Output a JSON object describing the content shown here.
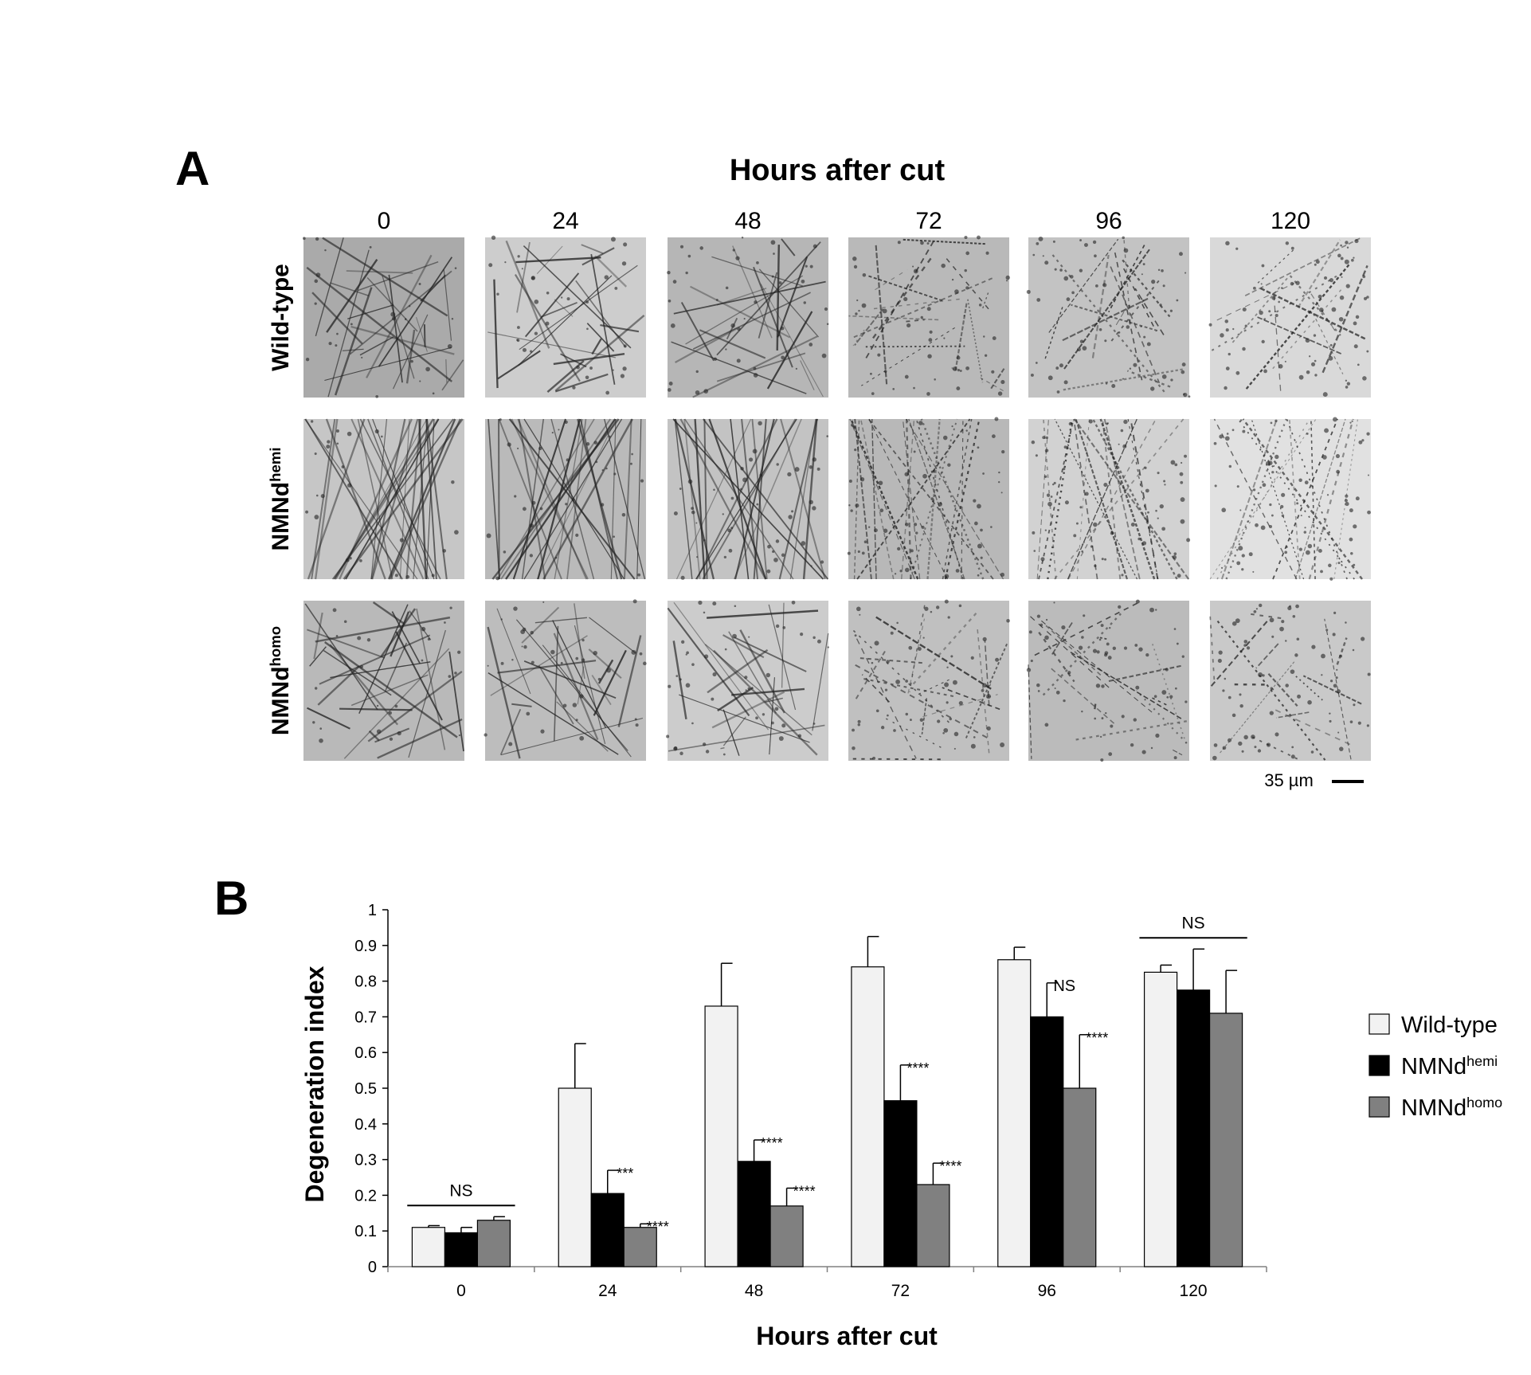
{
  "panel_a": {
    "label": "A",
    "title": "Hours after cut",
    "columns": [
      "0",
      "24",
      "48",
      "72",
      "96",
      "120"
    ],
    "rows": [
      {
        "name": "Wild-type"
      },
      {
        "name": "NMNd",
        "sup": "hemi"
      },
      {
        "name": "NMNd",
        "sup": "homo"
      }
    ],
    "scale_bar": "35 µm"
  },
  "chart_data": {
    "type": "bar",
    "panel_label": "B",
    "x_label": "Hours after cut",
    "y_label": "Degeneration index",
    "categories": [
      "0",
      "24",
      "48",
      "72",
      "96",
      "120"
    ],
    "series": [
      {
        "name": "Wild-type",
        "color": "#f2f2f2",
        "values": [
          0.11,
          0.5,
          0.73,
          0.84,
          0.86,
          0.825
        ],
        "errors": [
          0.005,
          0.125,
          0.12,
          0.085,
          0.035,
          0.02
        ],
        "significance": [
          null,
          null,
          null,
          null,
          null,
          null
        ]
      },
      {
        "name": "NMNd",
        "name_sup": "hemi",
        "color": "#000000",
        "values": [
          0.095,
          0.205,
          0.295,
          0.465,
          0.7,
          0.775
        ],
        "errors": [
          0.015,
          0.065,
          0.06,
          0.1,
          0.095,
          0.115
        ],
        "significance": [
          null,
          "***",
          "****",
          "****",
          "NS",
          null
        ]
      },
      {
        "name": "NMNd",
        "name_sup": "homo",
        "color": "#808080",
        "values": [
          0.13,
          0.11,
          0.17,
          0.23,
          0.5,
          0.71
        ],
        "errors": [
          0.01,
          0.01,
          0.05,
          0.06,
          0.15,
          0.12
        ],
        "significance": [
          null,
          "****",
          "****",
          "****",
          "****",
          null
        ]
      }
    ],
    "group_significance": [
      "NS",
      null,
      null,
      null,
      null,
      "NS"
    ],
    "ylim": [
      0,
      1
    ],
    "yticks": [
      0,
      0.1,
      0.2,
      0.3,
      0.4,
      0.5,
      0.6,
      0.7,
      0.8,
      0.9,
      1
    ],
    "legend": "right"
  }
}
